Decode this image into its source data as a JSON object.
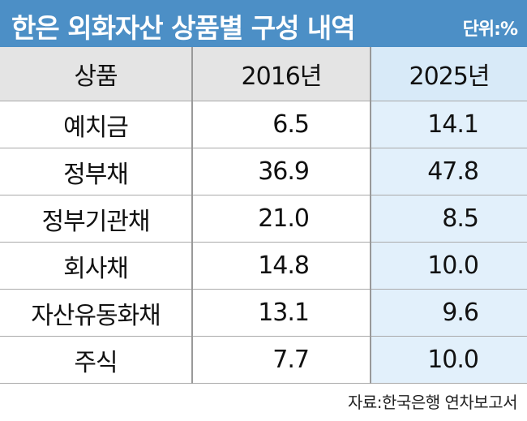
{
  "header": {
    "title": "한은 외화자산 상품별 구성 내역",
    "unit": "단위:%"
  },
  "table": {
    "columns": [
      "상품",
      "2016년",
      "2025년"
    ],
    "rows": [
      [
        "예치금",
        "6.5",
        "14.1"
      ],
      [
        "정부채",
        "36.9",
        "47.8"
      ],
      [
        "정부기관채",
        "21.0",
        "8.5"
      ],
      [
        "회사채",
        "14.8",
        "10.0"
      ],
      [
        "자산유동화채",
        "13.1",
        "9.6"
      ],
      [
        "주식",
        "7.7",
        "10.0"
      ]
    ]
  },
  "footer": {
    "source": "자료:한국은행 연차보고서"
  }
}
